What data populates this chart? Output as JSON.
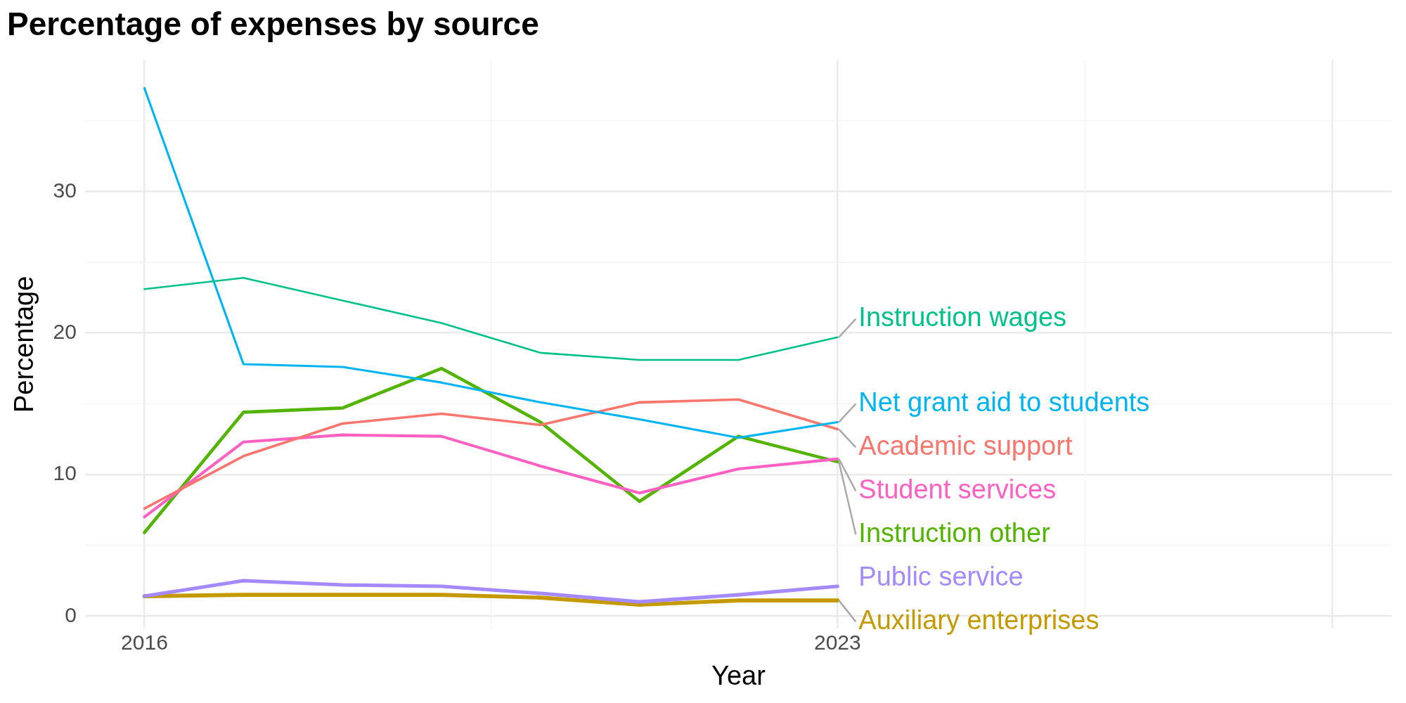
{
  "chart_data": {
    "type": "line",
    "title": "Percentage of expenses by source",
    "xlabel": "Year",
    "ylabel": "Percentage",
    "x": [
      2016,
      2017,
      2018,
      2019,
      2020,
      2021,
      2022,
      2023
    ],
    "series": [
      {
        "name": "Instruction wages",
        "color": "#00c08b",
        "values": [
          23.1,
          23.9,
          22.3,
          20.7,
          18.6,
          18.1,
          18.1,
          19.7
        ]
      },
      {
        "name": "Net grant aid to students",
        "color": "#00b4f0",
        "values": [
          37.3,
          17.8,
          17.6,
          16.5,
          15.1,
          13.9,
          12.6,
          13.7
        ]
      },
      {
        "name": "Academic support",
        "color": "#f8766d",
        "values": [
          7.6,
          11.3,
          13.6,
          14.3,
          13.5,
          15.1,
          15.3,
          13.2
        ]
      },
      {
        "name": "Student services",
        "color": "#ff61c3",
        "values": [
          7.0,
          12.3,
          12.8,
          12.7,
          10.6,
          8.7,
          10.4,
          11.1
        ]
      },
      {
        "name": "Instruction other",
        "color": "#53b400",
        "values": [
          5.9,
          14.4,
          14.7,
          17.5,
          13.7,
          8.1,
          12.7,
          10.9
        ]
      },
      {
        "name": "Public service",
        "color": "#a58aff",
        "values": [
          1.4,
          2.5,
          2.2,
          2.1,
          1.6,
          1.0,
          1.5,
          2.1
        ]
      },
      {
        "name": "Auxiliary enterprises",
        "color": "#c49a00",
        "values": [
          1.4,
          1.5,
          1.5,
          1.5,
          1.3,
          0.8,
          1.1,
          1.1
        ]
      }
    ],
    "xlim": [
      2015.4,
      2028.6
    ],
    "xticks": [
      2016,
      2023,
      {
        "value": 2028,
        "label": null
      }
    ],
    "ylim": [
      -0.9,
      39.3
    ],
    "yticks": [
      0,
      10,
      20,
      30
    ],
    "grid": true,
    "legend": false,
    "marker": "none",
    "line_style": "solid"
  }
}
